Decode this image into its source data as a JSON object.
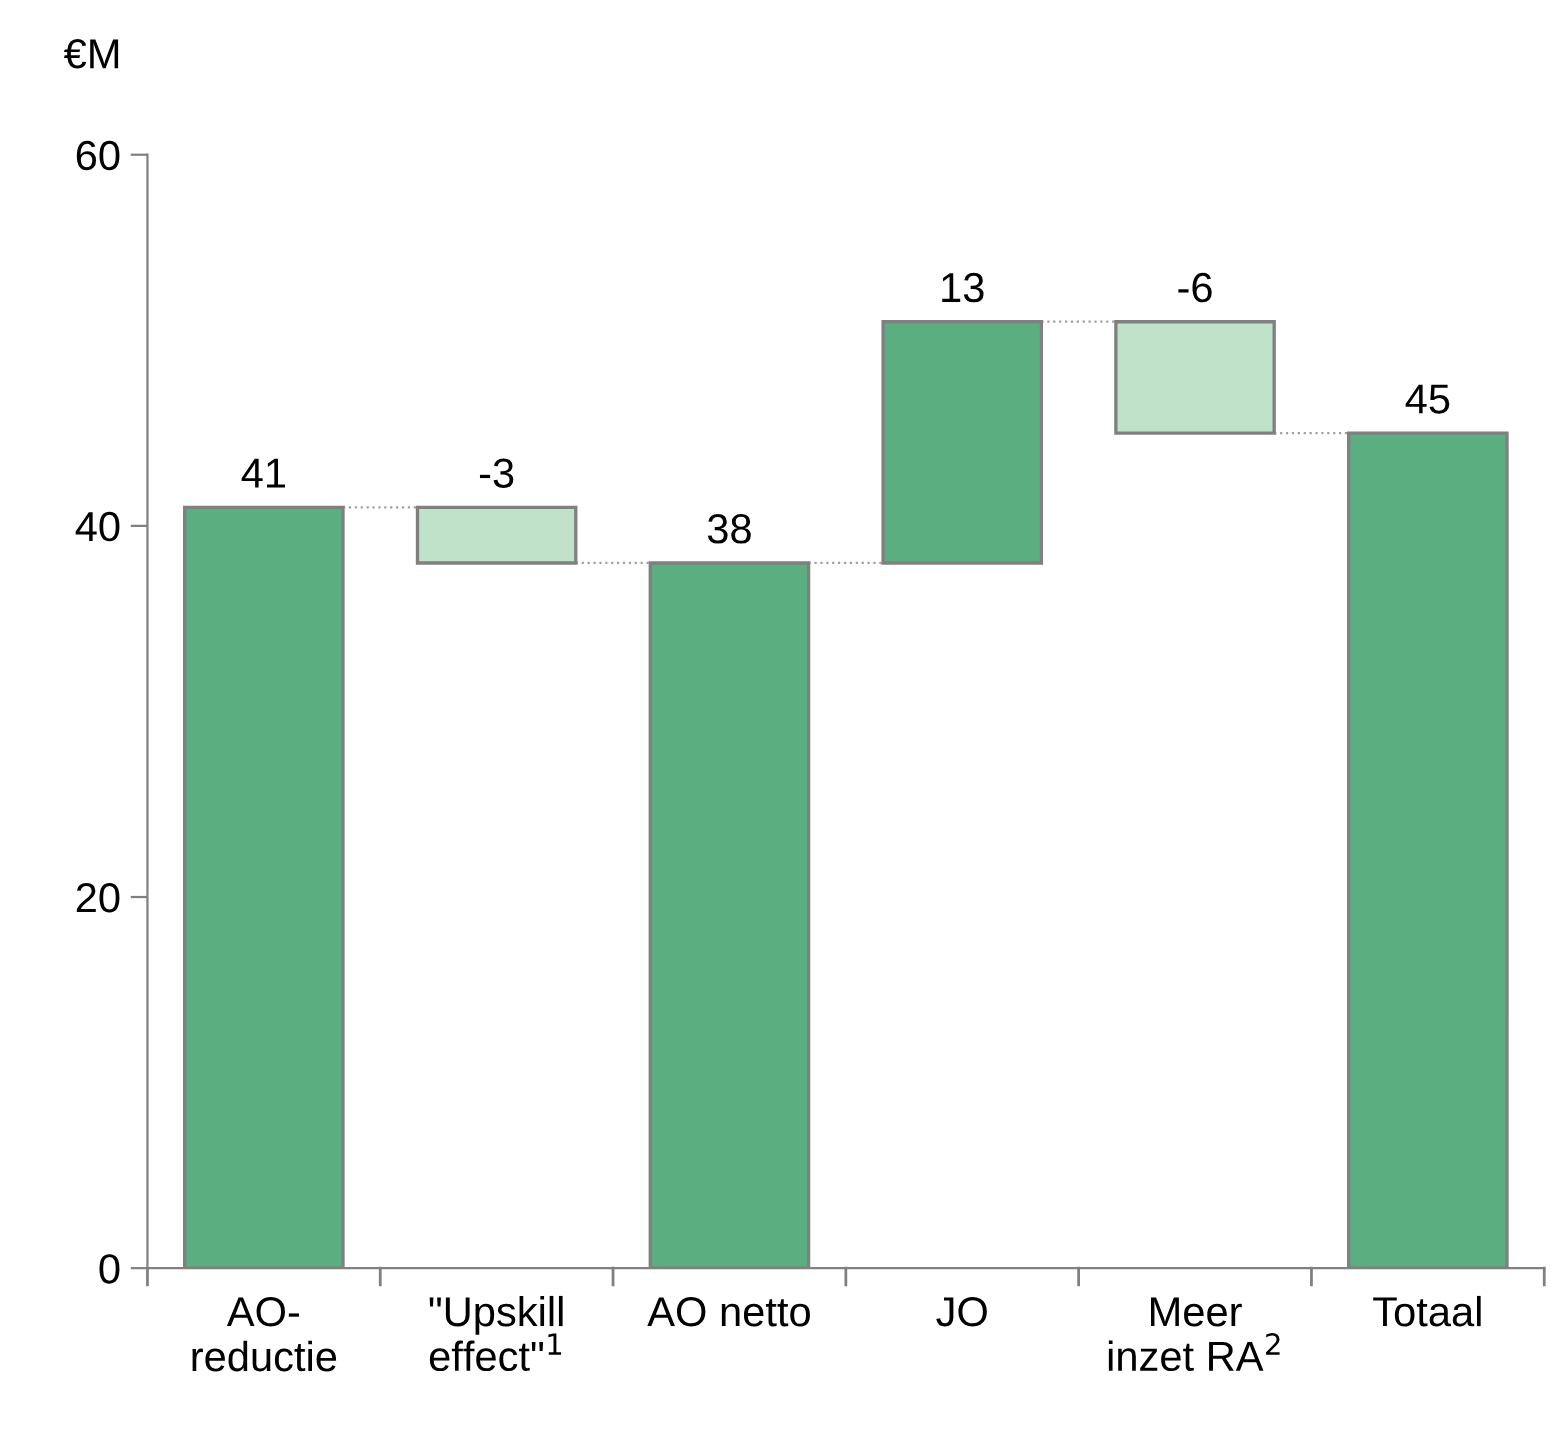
{
  "chart_data": {
    "type": "bar",
    "ylabel": "€M",
    "categories": [
      "AO-\nreductie",
      "\"Upskill\neffect\"$^{1}$",
      "AO netto",
      "JO",
      "Meer\ninzet RA$^{2}$",
      "Totaal"
    ],
    "values": [
      41,
      -3,
      38,
      13,
      -6,
      45
    ],
    "base": [
      0,
      41,
      0,
      38,
      51,
      0
    ],
    "colors": [
      "#5aae80",
      "#c0e2c8",
      "#5aae80",
      "#5aae80",
      "#c0e2c8",
      "#5aae80"
    ],
    "ylim": [
      0,
      60
    ],
    "yticks": [
      0,
      20,
      40,
      60
    ],
    "data_labels": true,
    "grid": false,
    "legend": false
  }
}
